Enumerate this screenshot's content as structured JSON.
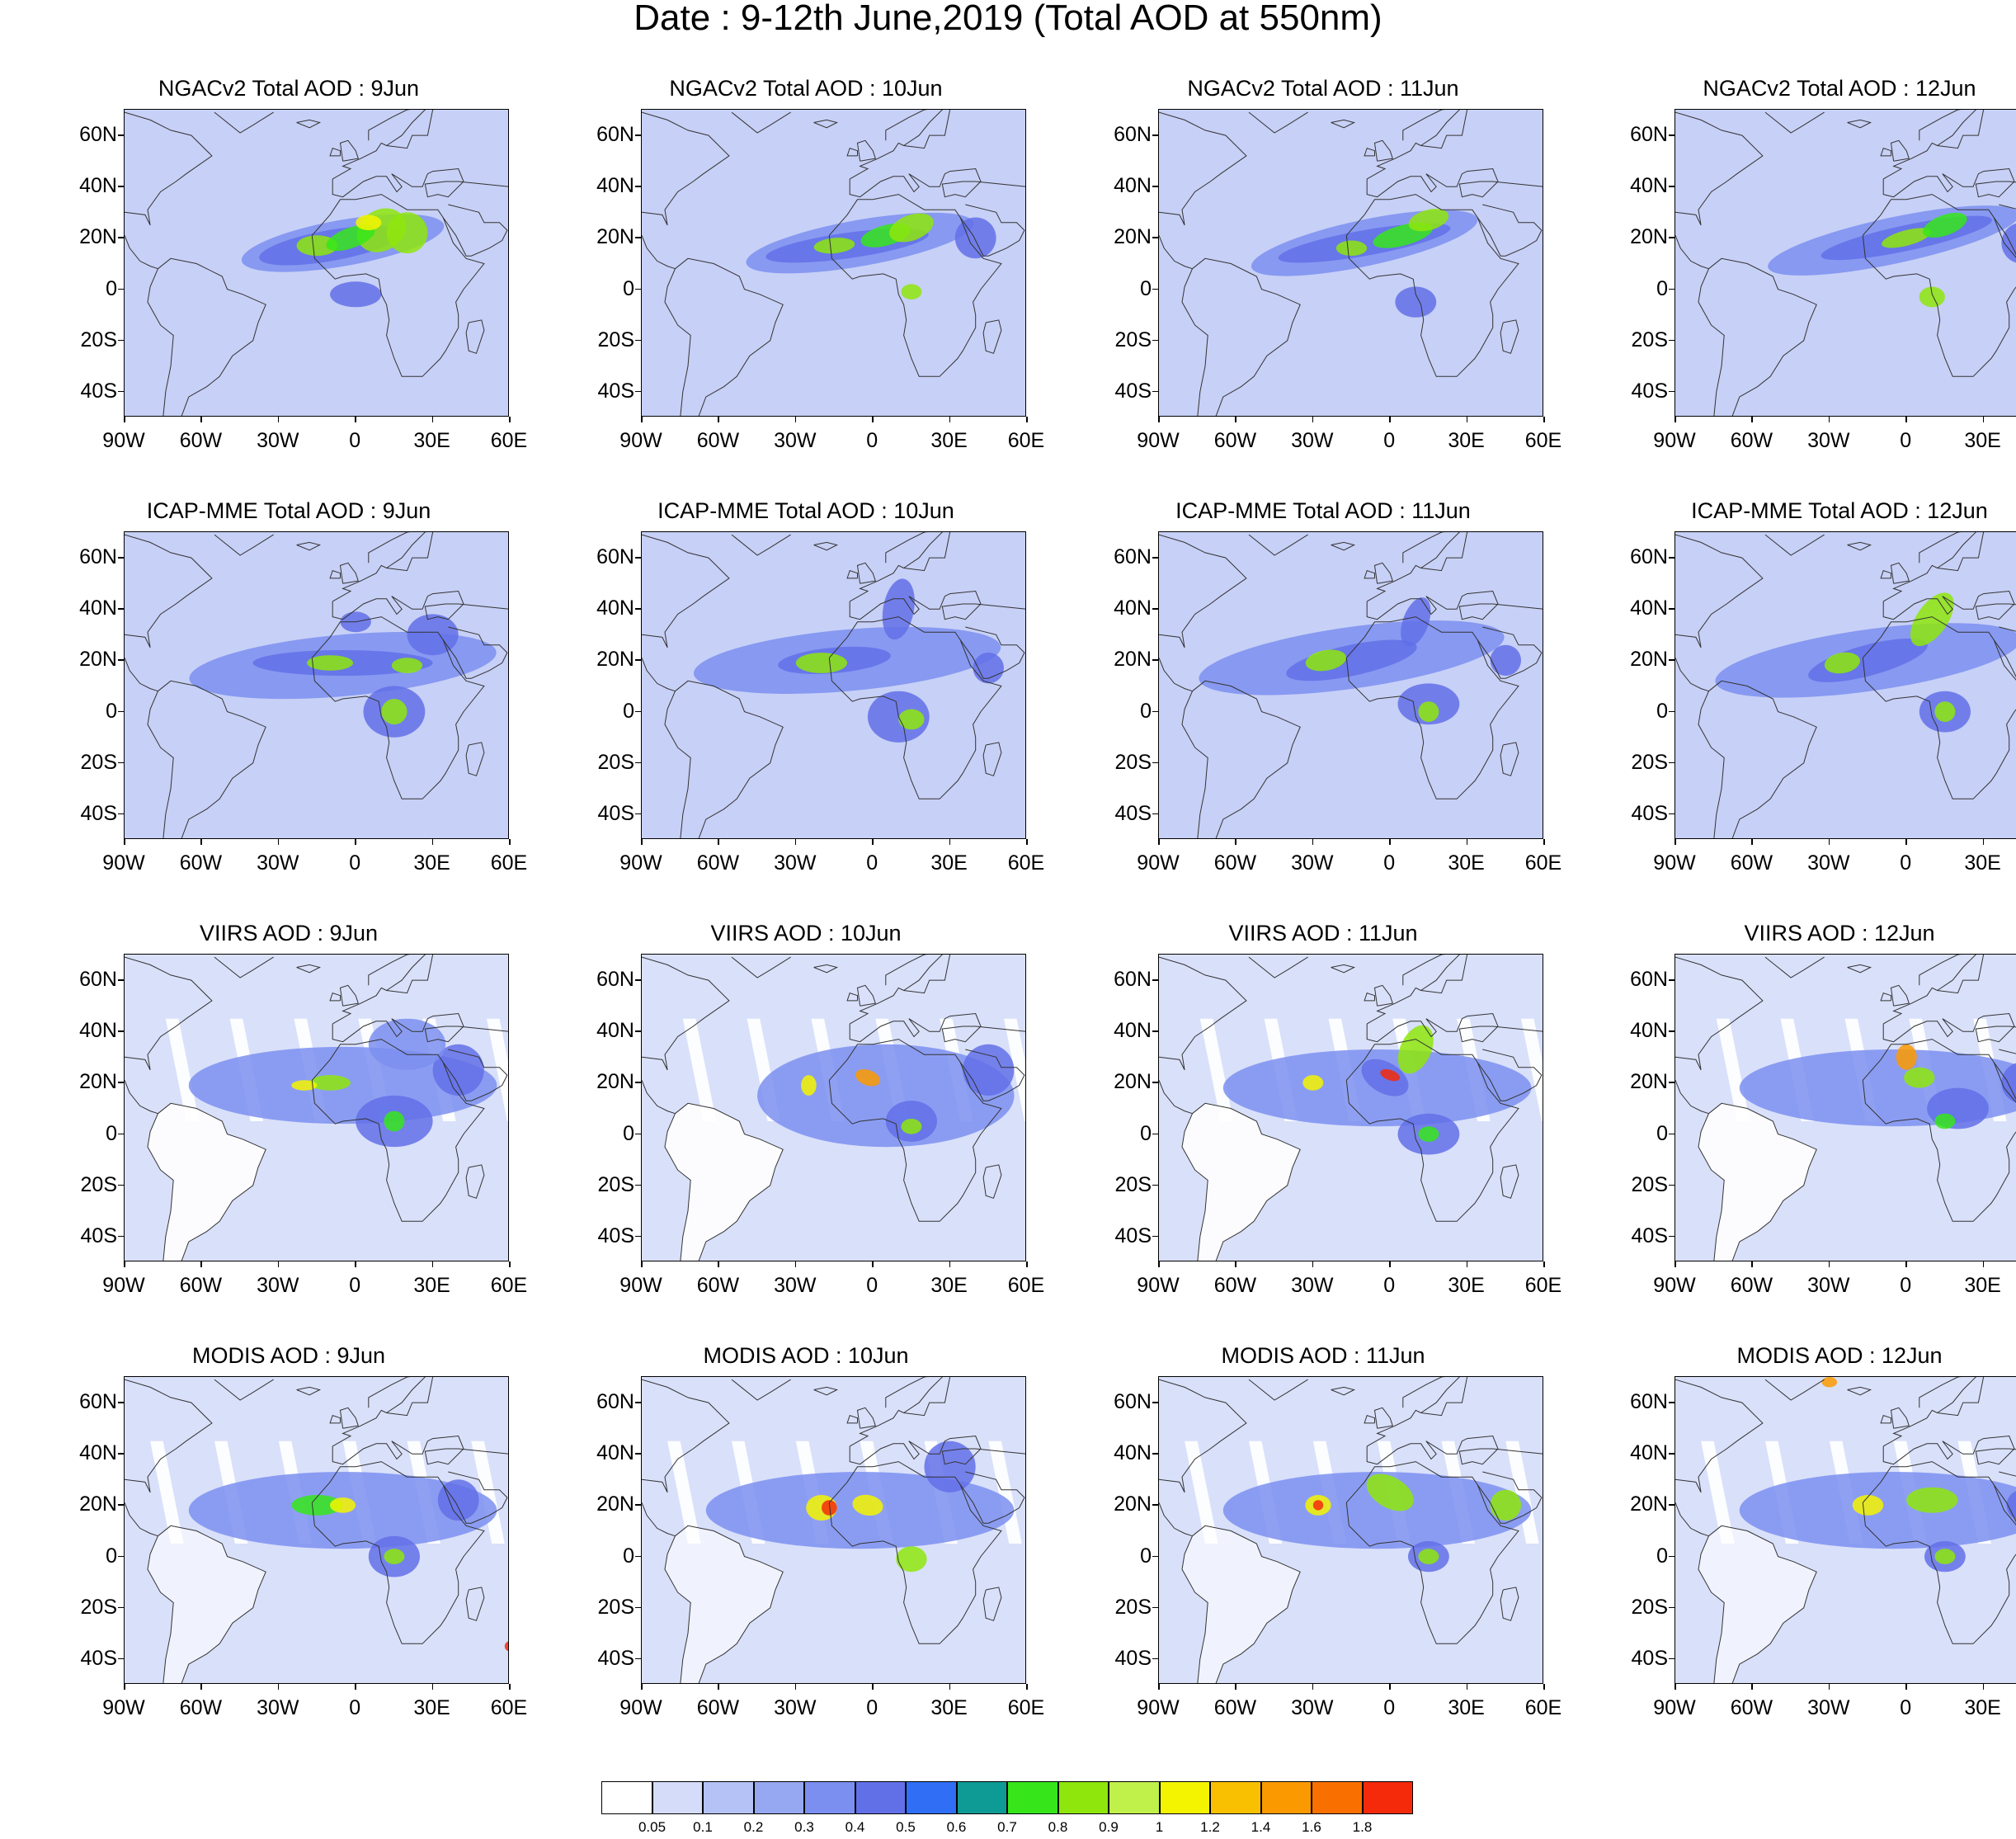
{
  "figure": {
    "title": "Date : 9-12th June,2019 (Total AOD at 550nm)"
  },
  "map_axes": {
    "lat_labels": [
      "60N",
      "40N",
      "20N",
      "0",
      "20S",
      "40S"
    ],
    "lat_values": [
      60,
      40,
      20,
      0,
      -20,
      -40
    ],
    "lon_labels": [
      "90W",
      "60W",
      "30W",
      "0",
      "30E",
      "60E"
    ],
    "lon_values": [
      -90,
      -60,
      -30,
      0,
      30,
      60
    ],
    "lat_range": [
      -50,
      70
    ],
    "lon_range": [
      -90,
      60
    ]
  },
  "panels": [
    {
      "title": "NGACv2 Total AOD : 9Jun",
      "model": "NGACv2",
      "day": "9Jun"
    },
    {
      "title": "NGACv2 Total AOD : 10Jun",
      "model": "NGACv2",
      "day": "10Jun"
    },
    {
      "title": "NGACv2 Total AOD : 11Jun",
      "model": "NGACv2",
      "day": "11Jun"
    },
    {
      "title": "NGACv2 Total AOD : 12Jun",
      "model": "NGACv2",
      "day": "12Jun"
    },
    {
      "title": "ICAP-MME Total AOD : 9Jun",
      "model": "ICAP-MME",
      "day": "9Jun"
    },
    {
      "title": "ICAP-MME Total AOD : 10Jun",
      "model": "ICAP-MME",
      "day": "10Jun"
    },
    {
      "title": "ICAP-MME Total AOD : 11Jun",
      "model": "ICAP-MME",
      "day": "11Jun"
    },
    {
      "title": "ICAP-MME Total AOD : 12Jun",
      "model": "ICAP-MME",
      "day": "12Jun"
    },
    {
      "title": "VIIRS AOD : 9Jun",
      "model": "VIIRS",
      "day": "9Jun"
    },
    {
      "title": "VIIRS AOD : 10Jun",
      "model": "VIIRS",
      "day": "10Jun"
    },
    {
      "title": "VIIRS AOD : 11Jun",
      "model": "VIIRS",
      "day": "11Jun"
    },
    {
      "title": "VIIRS AOD : 12Jun",
      "model": "VIIRS",
      "day": "12Jun"
    },
    {
      "title": "MODIS AOD : 9Jun",
      "model": "MODIS",
      "day": "9Jun"
    },
    {
      "title": "MODIS AOD : 10Jun",
      "model": "MODIS",
      "day": "10Jun"
    },
    {
      "title": "MODIS AOD : 11Jun",
      "model": "MODIS",
      "day": "11Jun"
    },
    {
      "title": "MODIS AOD : 12Jun",
      "model": "MODIS",
      "day": "12Jun"
    }
  ],
  "colorbar": {
    "levels": [
      "0.05",
      "0.1",
      "0.2",
      "0.3",
      "0.4",
      "0.5",
      "0.6",
      "0.7",
      "0.8",
      "0.9",
      "1",
      "1.2",
      "1.4",
      "1.6",
      "1.8"
    ],
    "colors": [
      "#ffffff",
      "#d4dcf9",
      "#b4c2f5",
      "#96a8f1",
      "#7b8ff0",
      "#6270e8",
      "#2f6ef5",
      "#0e9b96",
      "#36e61a",
      "#8ee60c",
      "#c0f04a",
      "#f4f400",
      "#f8c000",
      "#fb9a00",
      "#fa7000",
      "#f42a0a"
    ]
  },
  "style": {
    "land_outline": "#333333",
    "map_background": "#c7d0f6",
    "plume_core": "#8ee60c",
    "plume_peak": "#f4f400"
  }
}
